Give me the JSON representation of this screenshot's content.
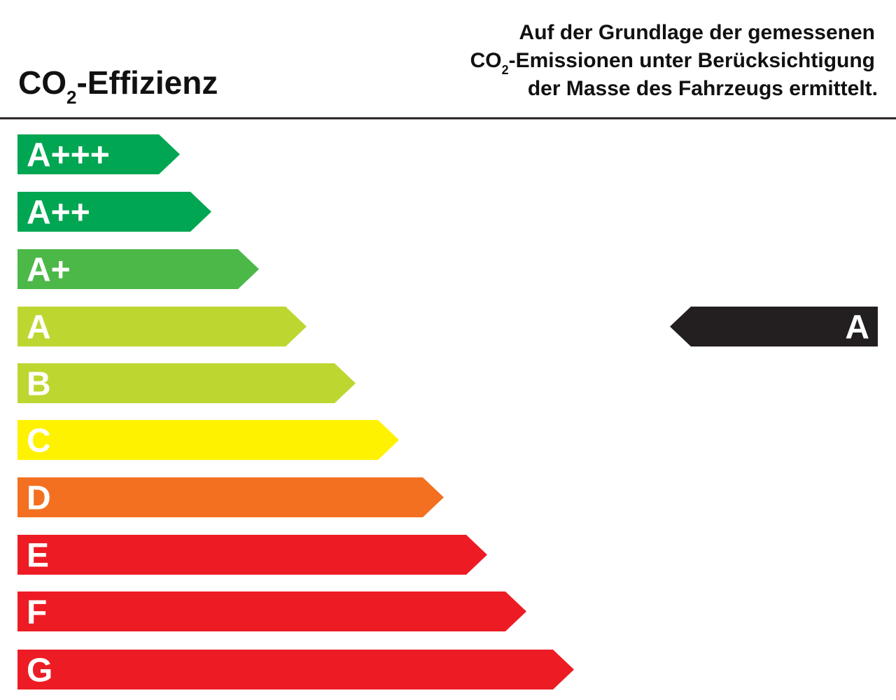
{
  "header": {
    "title": {
      "main": "CO",
      "sub": "2",
      "rest": "-Effizienz"
    },
    "description": {
      "line1": "Auf der Grundlage der gemessenen",
      "line2_main": "CO",
      "line2_sub": "2",
      "line2_rest": "-Emissionen unter Berücksichtigung",
      "line3": "der Masse des Fahrzeugs ermittelt."
    }
  },
  "classes": [
    {
      "label": "A+++",
      "color": "#00a651"
    },
    {
      "label": "A++",
      "color": "#00a651"
    },
    {
      "label": "A+",
      "color": "#4cb848"
    },
    {
      "label": "A",
      "color": "#bed630"
    },
    {
      "label": "B",
      "color": "#bed630"
    },
    {
      "label": "C",
      "color": "#fff200"
    },
    {
      "label": "D",
      "color": "#f37021"
    },
    {
      "label": "E",
      "color": "#ed1c24"
    },
    {
      "label": "F",
      "color": "#ed1c24"
    },
    {
      "label": "G",
      "color": "#ed1c24"
    }
  ],
  "indicator": {
    "label": "A",
    "color": "#231f20"
  }
}
